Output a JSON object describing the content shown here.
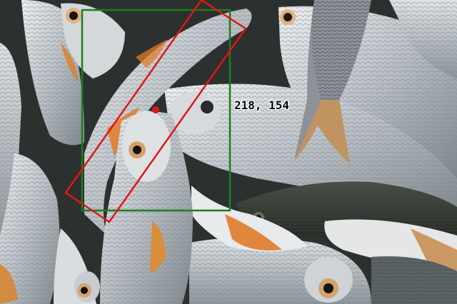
{
  "annotation": {
    "point_label": "218, 154",
    "box_color": "#1e7d1e",
    "rotated_box_color": "#e01616",
    "point_color": "#e01616"
  },
  "scene": {
    "subject": "pile-of-fish",
    "fish_body_color": "#c9cdd2",
    "fish_fin_color": "#d9822b",
    "fish_shadow_color": "#2f3433"
  }
}
